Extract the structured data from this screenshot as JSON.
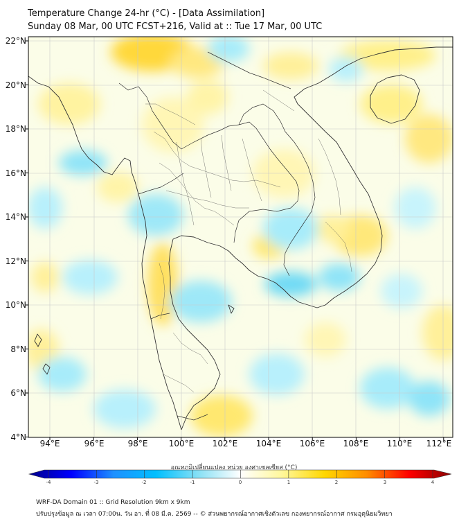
{
  "header": {
    "title": "Temperature Change 24-hr (°C) - [Data Assimilation]",
    "subtitle": "Sunday 08 Mar, 00 UTC FCST+216, Valid at :: Tue 17 Mar, 00 UTC"
  },
  "map": {
    "lat_labels": [
      "22°N",
      "20°N",
      "18°N",
      "16°N",
      "14°N",
      "12°N",
      "10°N",
      "8°N",
      "6°N",
      "4°N"
    ],
    "lon_labels": [
      "94°E",
      "96°E",
      "98°E",
      "100°E",
      "102°E",
      "104°E",
      "106°E",
      "108°E",
      "110°E",
      "112°E"
    ],
    "lat_values": [
      22,
      20,
      18,
      16,
      14,
      12,
      10,
      8,
      6,
      4
    ],
    "lon_values": [
      94,
      96,
      98,
      100,
      102,
      104,
      106,
      108,
      110,
      112
    ],
    "extent": {
      "lon_min": 93,
      "lon_max": 112.5,
      "lat_min": 4,
      "lat_max": 22.2
    }
  },
  "colorbar": {
    "title": "อุณหภูมิเปลี่ยนแปลง หน่วย องศาเซลเซียส (°C)",
    "ticks": [
      "-4",
      "-3",
      "-2",
      "-1",
      "0",
      "1",
      "2",
      "3",
      "4"
    ],
    "tick_values": [
      -4,
      -3,
      -2,
      -1,
      0,
      1,
      2,
      3,
      4
    ],
    "range": [
      -4,
      4
    ],
    "colors": [
      "#00008b",
      "#0000ff",
      "#1e90ff",
      "#00bfff",
      "#87e0f5",
      "#ffffff",
      "#fff79a",
      "#ffd700",
      "#ff8c00",
      "#ff0000",
      "#8b0000"
    ]
  },
  "footer": {
    "line1": "WRF-DA Domain 01 :: Grid Resolution 9km x 9km",
    "line2": "ปรับปรุงข้อมูล ณ เวลา 07:00น. วัน อา. ที่ 08 มี.ค. 2569 -- © ส่วนพยากรณ์อากาศเชิงตัวเลข กองพยากรณ์อากาศ กรมอุตุนิยมวิทยา"
  }
}
